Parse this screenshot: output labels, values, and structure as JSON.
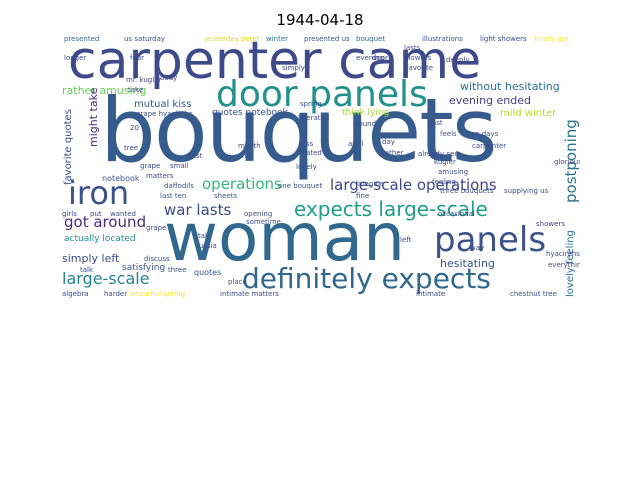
{
  "title": "1944-04-18",
  "words": [
    {
      "text": "bouquets",
      "color": "#365c8d"
    },
    {
      "text": "carpenter came",
      "color": "#3e4a89"
    },
    {
      "text": "woman",
      "color": "#31688e"
    },
    {
      "text": "door panels",
      "color": "#21918c"
    },
    {
      "text": "panels",
      "color": "#3b528b"
    },
    {
      "text": "definitely expects",
      "color": "#31688e"
    },
    {
      "text": "iron",
      "color": "#3b528b"
    },
    {
      "text": "expects large-scale",
      "color": "#1f9e89"
    },
    {
      "text": "large-scale operations",
      "color": "#414487"
    },
    {
      "text": "postponing",
      "color": "#2c728e"
    },
    {
      "text": "operations",
      "color": "#35b779"
    },
    {
      "text": "war lasts",
      "color": "#3e4a89"
    },
    {
      "text": "got around",
      "color": "#472d7b"
    },
    {
      "text": "large-scale",
      "color": "#26828e"
    },
    {
      "text": "without hesitating",
      "color": "#2c728e"
    },
    {
      "text": "evening ended",
      "color": "#433e85"
    },
    {
      "text": "hesitating",
      "color": "#3b528b"
    },
    {
      "text": "simply left",
      "color": "#3e4a89"
    },
    {
      "text": "mutual kiss",
      "color": "#3b528b"
    },
    {
      "text": "rather amusing",
      "color": "#6ece58"
    },
    {
      "text": "actually located",
      "color": "#21918c"
    },
    {
      "text": "lovely feeling",
      "color": "#2c728e"
    },
    {
      "text": "mild winter",
      "color": "#b5de2b"
    },
    {
      "text": "might take",
      "color": "#472d7b"
    },
    {
      "text": "favorite quotes",
      "color": "#3e4a89"
    },
    {
      "text": "quotes notebook",
      "color": "#3b528b"
    },
    {
      "text": "think lying",
      "color": "#a0da39"
    },
    {
      "text": "satisfying",
      "color": "#3b528b"
    },
    {
      "text": "illustrations",
      "color": "#3b528b"
    },
    {
      "text": "light showers",
      "color": "#3e4a89"
    },
    {
      "text": "finally got",
      "color": "#fde725"
    },
    {
      "text": "presented",
      "color": "#31688e"
    },
    {
      "text": "us saturday",
      "color": "#3b528b"
    },
    {
      "text": "yesterday peter",
      "color": "#d8e219"
    },
    {
      "text": "winter",
      "color": "#2c728e"
    },
    {
      "text": "presented us",
      "color": "#3b528b"
    },
    {
      "text": "bouquet",
      "color": "#31688e"
    },
    {
      "text": "mr. kugler",
      "color": "#3e4a89"
    },
    {
      "text": "grape hyacinths",
      "color": "#3b528b"
    },
    {
      "text": "body",
      "color": "#3e4a89"
    },
    {
      "text": "notebook",
      "color": "#3b528b"
    },
    {
      "text": "daffodils",
      "color": "#3e4a89"
    },
    {
      "text": "matters",
      "color": "#3e4a89"
    },
    {
      "text": "last ten",
      "color": "#3b528b"
    },
    {
      "text": "sheets",
      "color": "#3b528b"
    },
    {
      "text": "quotes",
      "color": "#3b528b"
    },
    {
      "text": "place",
      "color": "#3e4a89"
    },
    {
      "text": "one bouquet",
      "color": "#3e4a89"
    },
    {
      "text": "italy",
      "color": "#3e4a89"
    },
    {
      "text": "russia",
      "color": "#3e4a89"
    },
    {
      "text": "spring",
      "color": "#3b528b"
    },
    {
      "text": "liberated",
      "color": "#3e4a89"
    },
    {
      "text": "opening",
      "color": "#3e4a89"
    },
    {
      "text": "sometime",
      "color": "#3e4a89"
    },
    {
      "text": "feels",
      "color": "#3b528b"
    },
    {
      "text": "ten days",
      "color": "#3b528b"
    },
    {
      "text": "carpenter",
      "color": "#3e4a89"
    },
    {
      "text": "kugler",
      "color": "#3e4a89"
    },
    {
      "text": "already see",
      "color": "#3e4a89"
    },
    {
      "text": "amusing",
      "color": "#3e4a89"
    },
    {
      "text": "feeling",
      "color": "#3e4a89"
    },
    {
      "text": "three bouquets",
      "color": "#3e4a89"
    },
    {
      "text": "supplying us",
      "color": "#3e4a89"
    },
    {
      "text": "glorious",
      "color": "#3e4a89"
    },
    {
      "text": "fine",
      "color": "#3e4a89"
    },
    {
      "text": "occasional",
      "color": "#3e4a89"
    },
    {
      "text": "hyacinths",
      "color": "#3e4a89"
    },
    {
      "text": "everything",
      "color": "#3e4a89"
    },
    {
      "text": "imagine",
      "color": "#3e4a89"
    },
    {
      "text": "intimate matters",
      "color": "#3e4a89"
    },
    {
      "text": "intimate",
      "color": "#3e4a89"
    },
    {
      "text": "chestnut tree",
      "color": "#3e4a89"
    },
    {
      "text": "beautiful spring",
      "color": "#fde725"
    },
    {
      "text": "discuss",
      "color": "#3e4a89"
    },
    {
      "text": "three",
      "color": "#3e4a89"
    },
    {
      "text": "algebra",
      "color": "#3e4a89"
    },
    {
      "text": "harder",
      "color": "#3e4a89"
    },
    {
      "text": "talk",
      "color": "#3e4a89"
    },
    {
      "text": "girls",
      "color": "#3e4a89"
    },
    {
      "text": "put",
      "color": "#3e4a89"
    },
    {
      "text": "wanted",
      "color": "#3e4a89"
    },
    {
      "text": "tree",
      "color": "#3e4a89"
    },
    {
      "text": "longer",
      "color": "#3e4a89"
    },
    {
      "text": "four",
      "color": "#3e4a89"
    },
    {
      "text": "lasts",
      "color": "#3e4a89"
    },
    {
      "text": "flowers",
      "color": "#3e4a89"
    },
    {
      "text": "deeply",
      "color": "#3e4a89"
    },
    {
      "text": "favorite",
      "color": "#3e4a89"
    },
    {
      "text": "last",
      "color": "#3e4a89"
    },
    {
      "text": "april",
      "color": "#3e4a89"
    },
    {
      "text": "day",
      "color": "#3e4a89"
    },
    {
      "text": "found",
      "color": "#3e4a89"
    },
    {
      "text": "simply",
      "color": "#3e4a89"
    },
    {
      "text": "evening",
      "color": "#3e4a89"
    },
    {
      "text": "door",
      "color": "#3e4a89"
    },
    {
      "text": "lovely",
      "color": "#3e4a89"
    },
    {
      "text": "located",
      "color": "#3e4a89"
    },
    {
      "text": "kiss",
      "color": "#3e4a89"
    },
    {
      "text": "mouth",
      "color": "#3e4a89"
    },
    {
      "text": "hot",
      "color": "#3e4a89"
    },
    {
      "text": "west",
      "color": "#3e4a89"
    },
    {
      "text": "small",
      "color": "#3e4a89"
    },
    {
      "text": "grape",
      "color": "#3e4a89"
    },
    {
      "text": "20",
      "color": "#3e4a89"
    },
    {
      "text": "ended",
      "color": "#3e4a89"
    },
    {
      "text": "rather",
      "color": "#3e4a89"
    },
    {
      "text": "showers",
      "color": "#3e4a89"
    },
    {
      "text": "way",
      "color": "#3e4a89"
    },
    {
      "text": "left",
      "color": "#3e4a89"
    },
    {
      "text": "take",
      "color": "#3e4a89"
    }
  ]
}
